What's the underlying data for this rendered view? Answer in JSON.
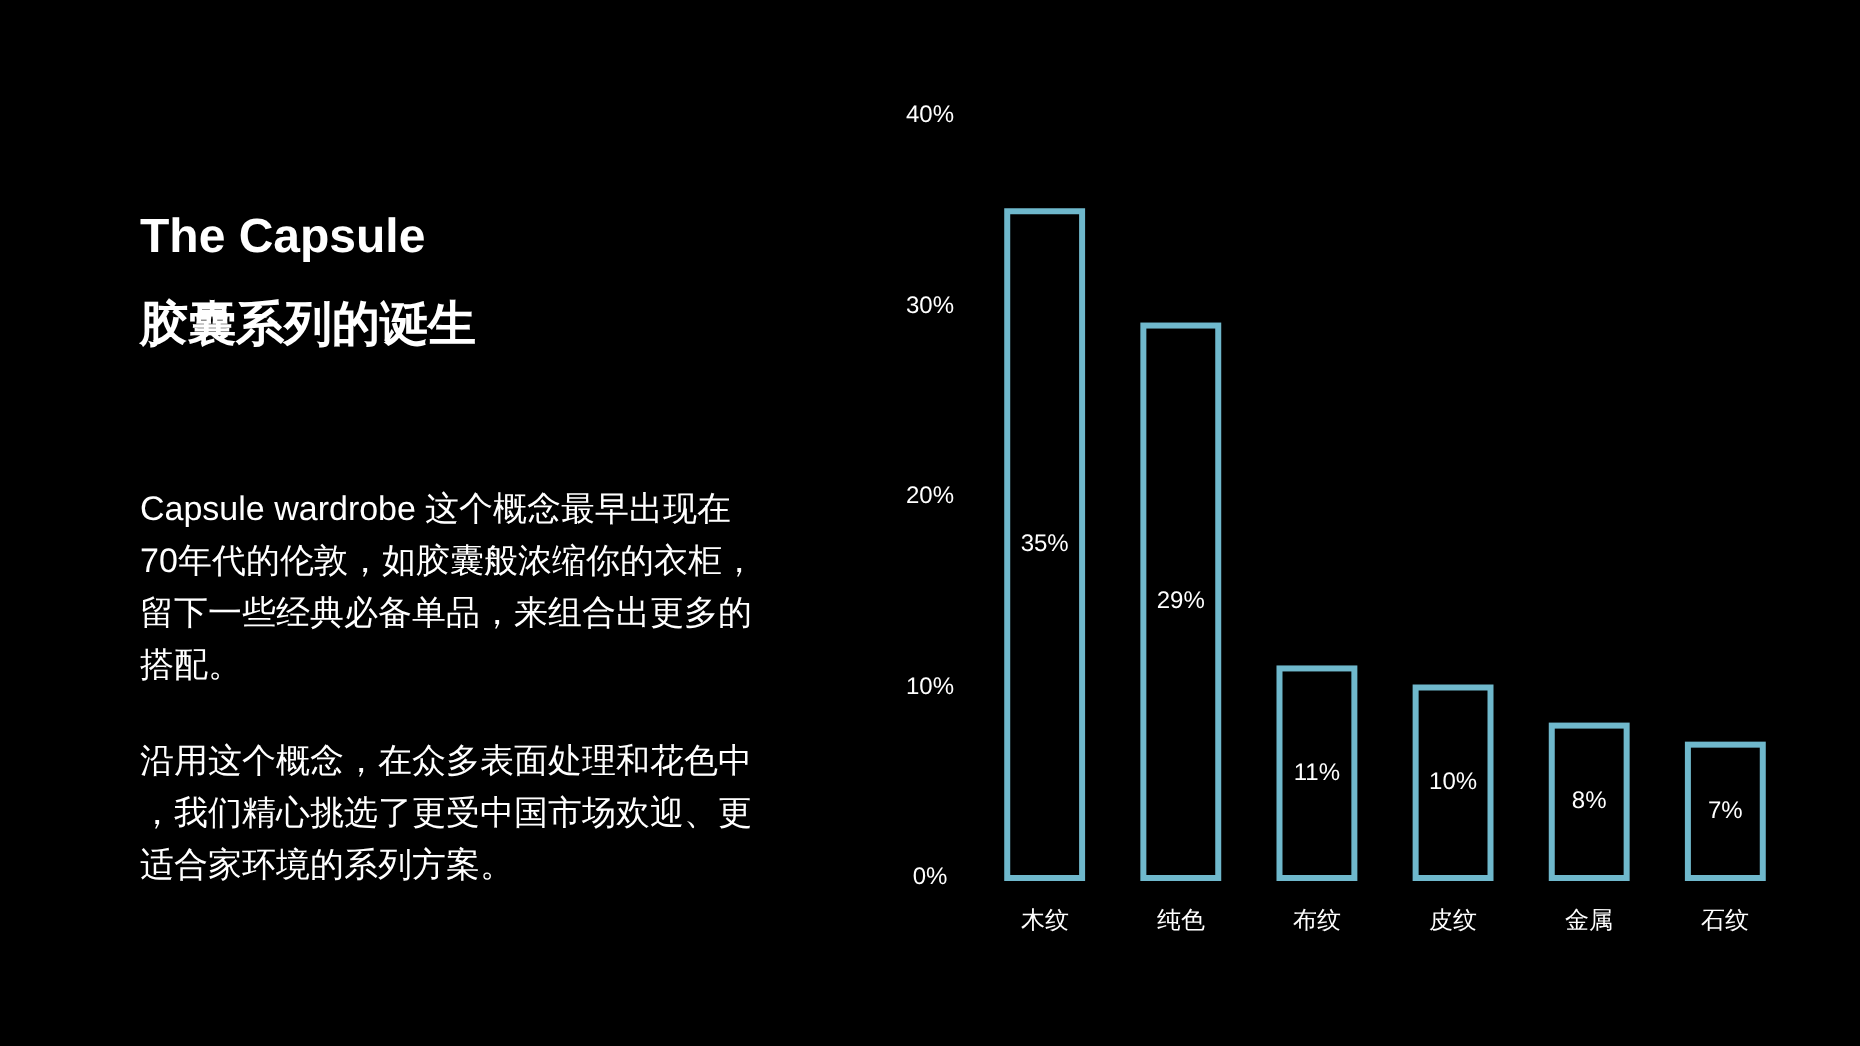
{
  "chart_data": {
    "type": "bar",
    "title": "The Capsule",
    "subtitle": "胶囊系列的诞生",
    "annotations": [
      "Capsule wardrobe 这个概念最早出现在70年代的伦敦，如胶囊般浓缩你的衣柜，留下一些经典必备单品，来组合出更多的搭配。",
      "沿用这个概念，在众多表面处理和花色中，我们精心挑选了更受中国市场欢迎、更适合家环境的系列方案。"
    ],
    "categories": [
      "木纹",
      "纯色",
      "布纹",
      "皮纹",
      "金属",
      "石纹"
    ],
    "values": [
      35,
      29,
      11,
      10,
      8,
      7
    ],
    "value_labels": [
      "35%",
      "29%",
      "11%",
      "10%",
      "8%",
      "7%"
    ],
    "color": "#6fb8cc",
    "ylim": [
      0,
      40
    ],
    "yticks": [
      {
        "value": 0,
        "label": "0%"
      },
      {
        "value": 10,
        "label": "10%"
      },
      {
        "value": 20,
        "label": "20%"
      },
      {
        "value": 30,
        "label": "30%"
      },
      {
        "value": 40,
        "label": "40%"
      }
    ],
    "grid": false
  }
}
